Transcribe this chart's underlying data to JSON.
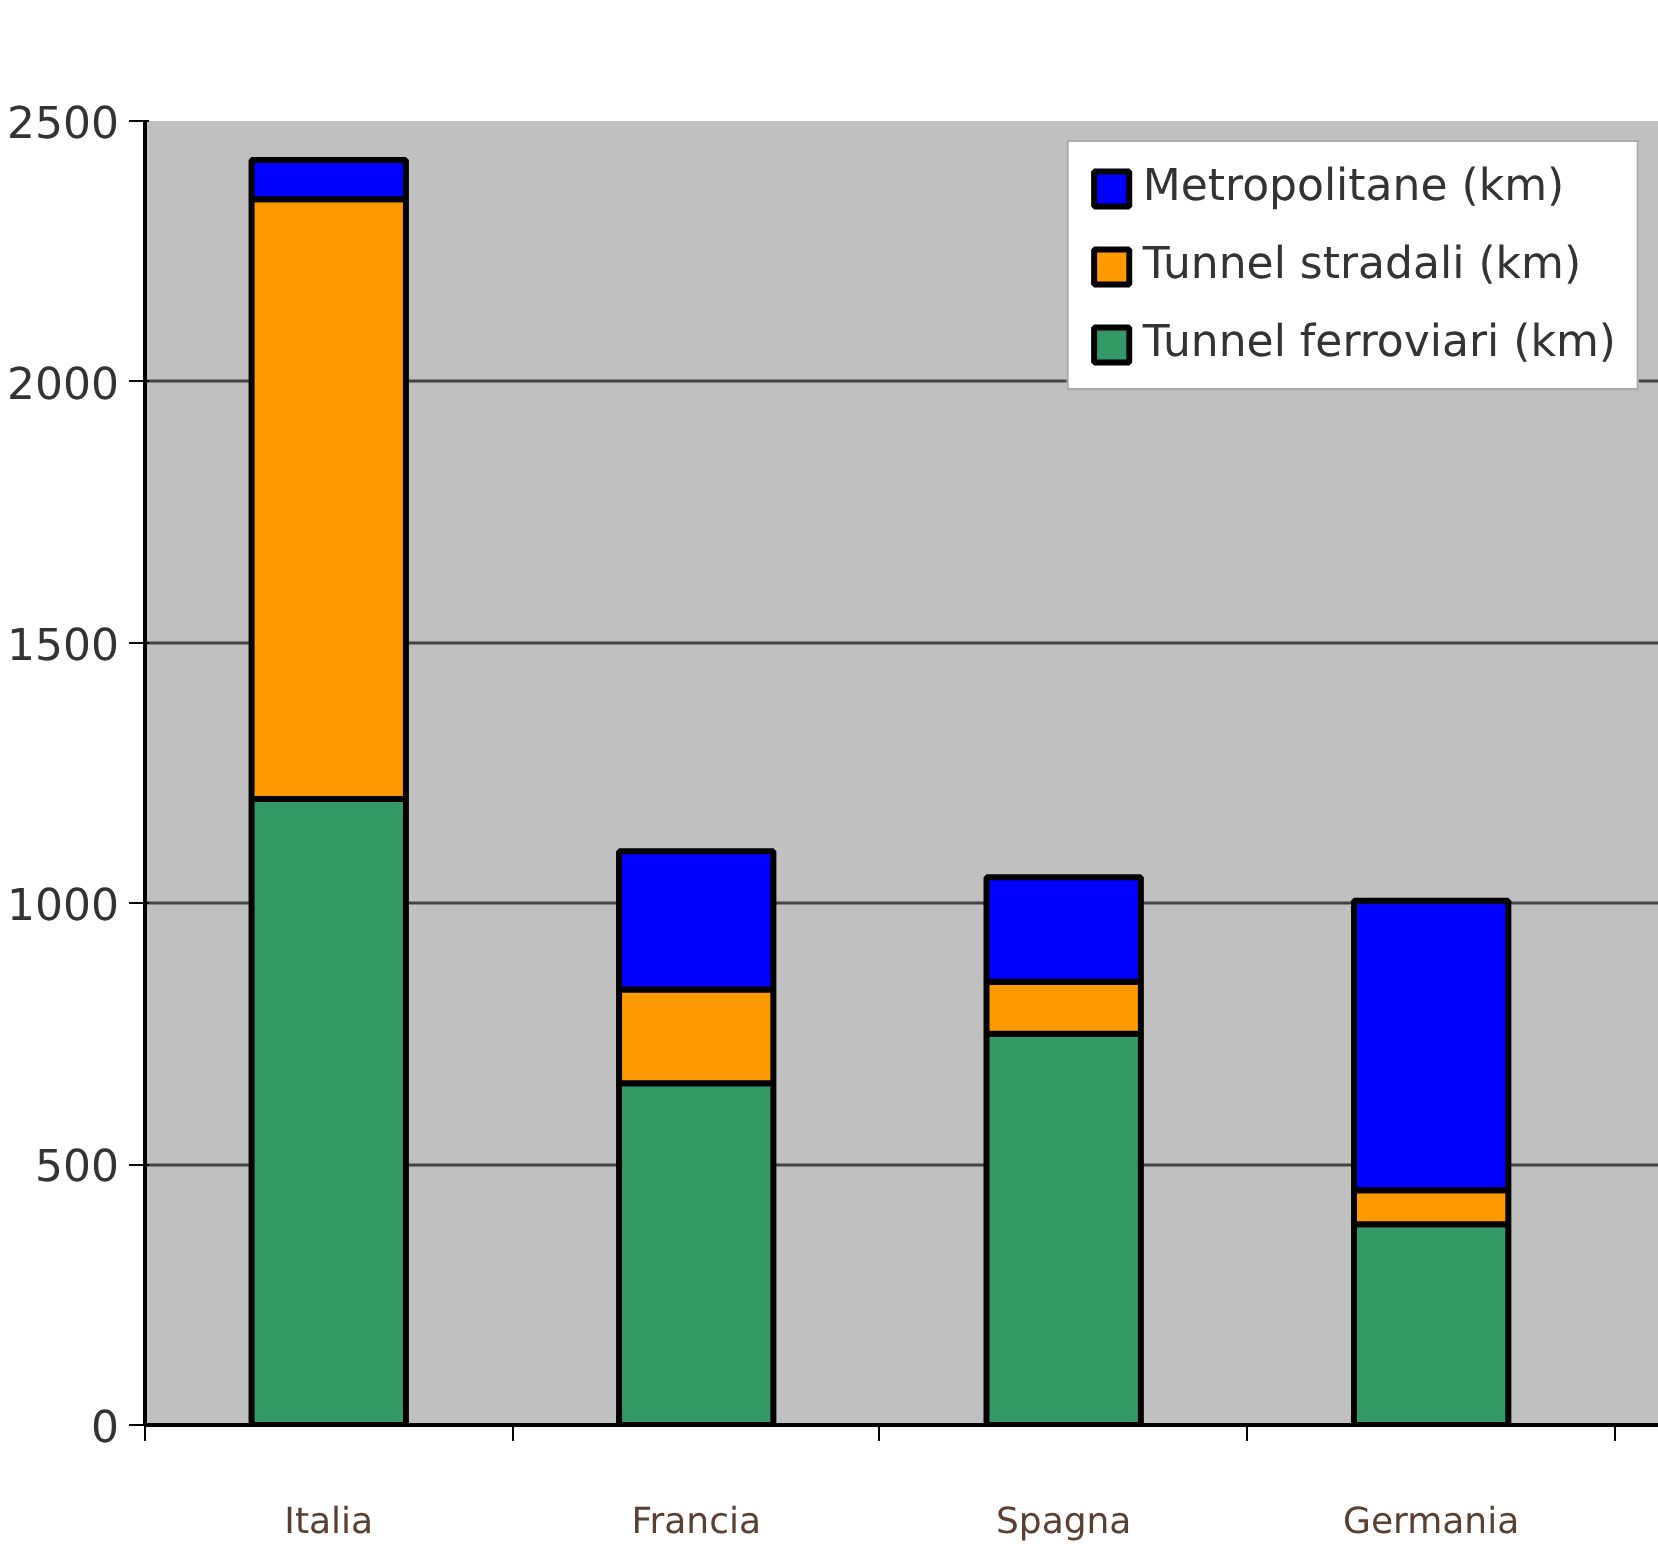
{
  "chart_data": {
    "type": "bar",
    "stacked": true,
    "categories": [
      "Italia",
      "Francia",
      "Spagna",
      "Germania"
    ],
    "series": [
      {
        "name": "Tunnel ferroviari (km)",
        "color": "#339966",
        "values": [
          1200,
          655,
          750,
          385
        ]
      },
      {
        "name": "Tunnel stradali (km)",
        "color": "#ff9900",
        "values": [
          1150,
          180,
          100,
          65
        ]
      },
      {
        "name": "Metropolitane (km)",
        "color": "#0000ff",
        "values": [
          75,
          265,
          200,
          555
        ]
      }
    ],
    "ylim": [
      0,
      2500
    ],
    "yticks": [
      0,
      500,
      1000,
      1500,
      2000,
      2500
    ],
    "grid": "y",
    "legend": "top right"
  }
}
